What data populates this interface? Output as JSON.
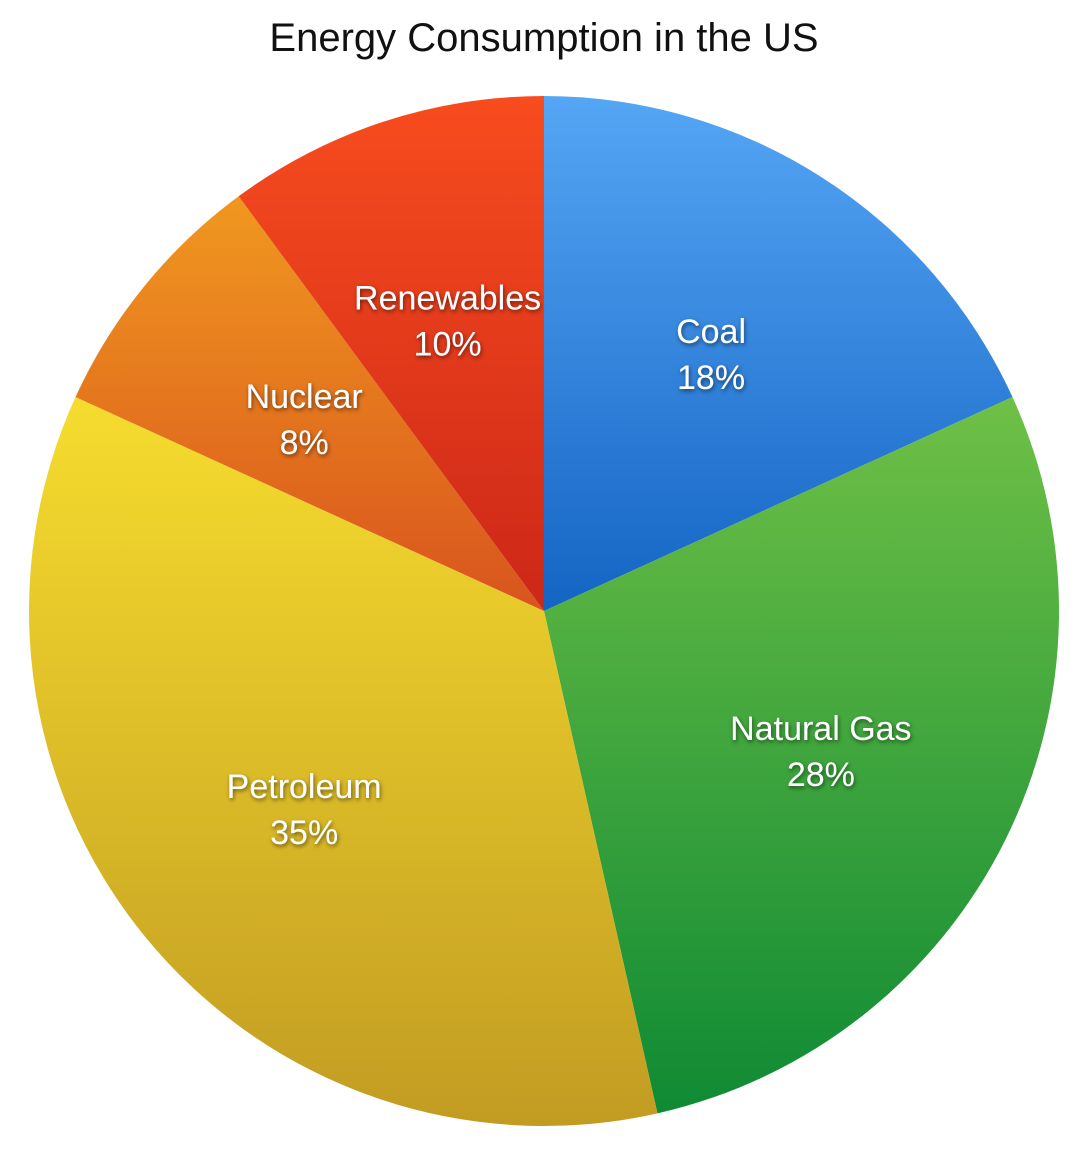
{
  "chart_data": {
    "type": "pie",
    "title": "Energy Consumption in the US",
    "slices": [
      {
        "name": "Coal",
        "value": 18,
        "label": "18%",
        "color_top": "#55a6f5",
        "color_bottom": "#1464c4"
      },
      {
        "name": "Natural Gas",
        "value": 28,
        "label": "28%",
        "color_top": "#6fc046",
        "color_bottom": "#0f8a34"
      },
      {
        "name": "Petroleum",
        "value": 35,
        "label": "35%",
        "color_top": "#f6dc2e",
        "color_bottom": "#c29c22"
      },
      {
        "name": "Nuclear",
        "value": 8,
        "label": "8%",
        "color_top": "#f0981f",
        "color_bottom": "#d9541e"
      },
      {
        "name": "Renewables",
        "value": 10,
        "label": "10%",
        "color_top": "#f84c1e",
        "color_bottom": "#cc2718"
      }
    ],
    "legend": "none",
    "start_angle": "12 o'clock",
    "direction": "clockwise"
  }
}
